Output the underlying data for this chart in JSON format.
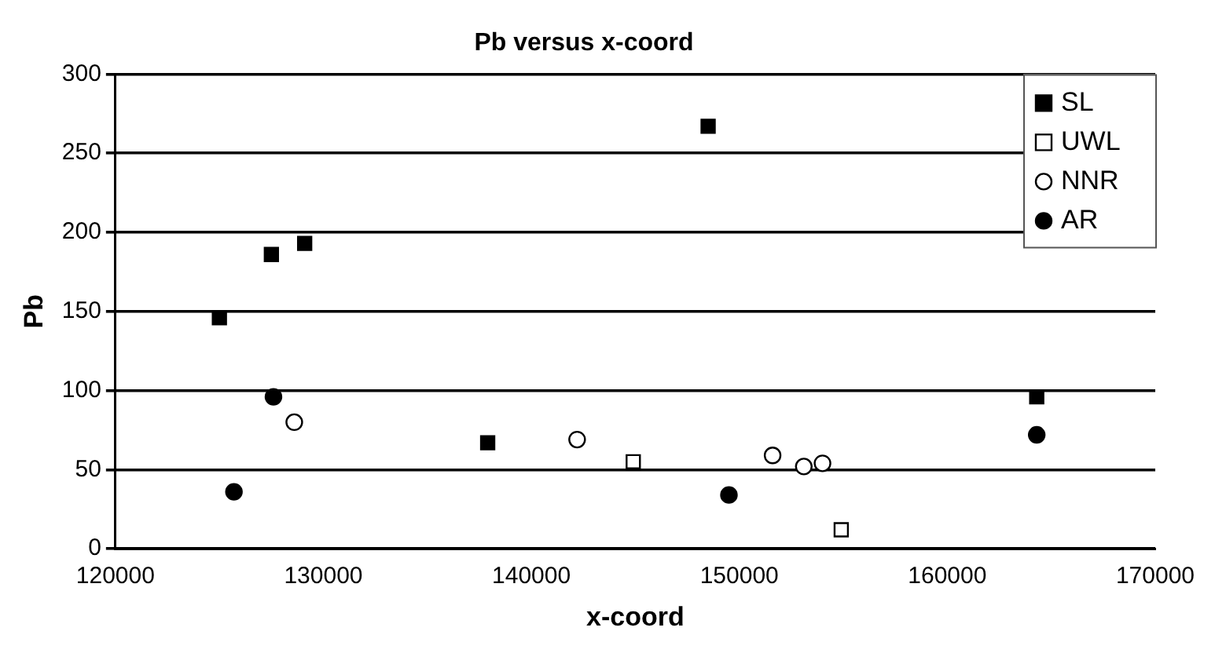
{
  "chart_data": {
    "type": "scatter",
    "title": "Pb versus x-coord",
    "xlabel": "x-coord",
    "ylabel": "Pb",
    "xlim": [
      120000,
      170000
    ],
    "xticks": [
      120000,
      130000,
      140000,
      150000,
      160000,
      170000
    ],
    "ylim": [
      0,
      300
    ],
    "yticks": [
      0,
      50,
      100,
      150,
      200,
      250,
      300
    ],
    "grid": "y",
    "legend": "top right",
    "series": [
      {
        "name": "SL",
        "color": "#000000",
        "marker": "square",
        "x": [
          125000,
          127500,
          129100,
          137900,
          148500,
          164300
        ],
        "values": [
          146,
          186,
          193,
          67,
          267,
          96
        ]
      },
      {
        "name": "UWL",
        "color": "#ffffff",
        "marker": "square",
        "x": [
          144900,
          154900
        ],
        "values": [
          55,
          12
        ]
      },
      {
        "name": "NNR",
        "color": "#ffffff",
        "marker": "circle",
        "x": [
          128600,
          142200,
          151600,
          153100,
          154000
        ],
        "values": [
          80,
          69,
          59,
          52,
          54
        ]
      },
      {
        "name": "AR",
        "color": "#000000",
        "marker": "circle",
        "x": [
          127600,
          125700,
          149500,
          164300
        ],
        "values": [
          96,
          36,
          34,
          72
        ]
      }
    ]
  }
}
